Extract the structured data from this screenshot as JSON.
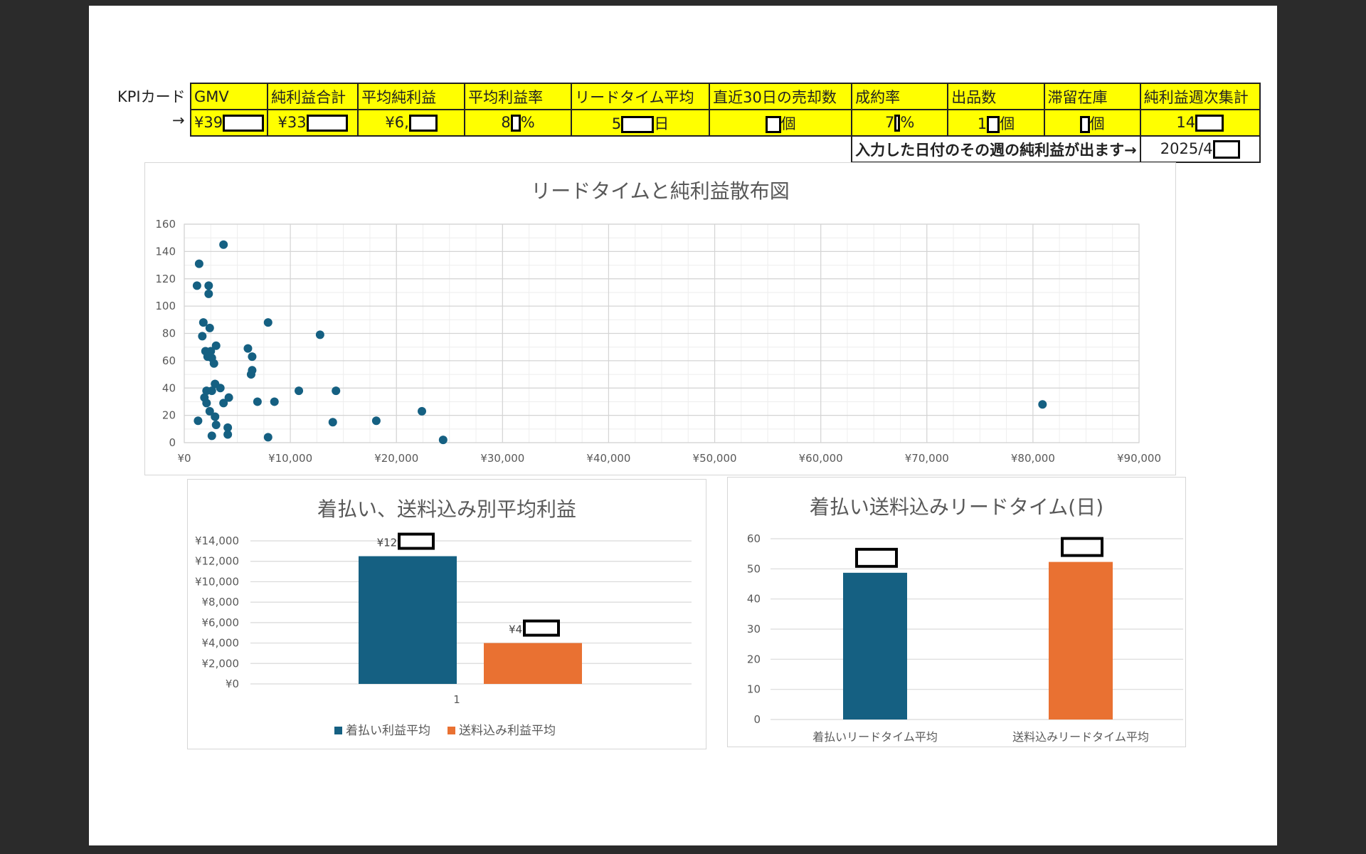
{
  "kpi": {
    "card_label": "KPIカード",
    "arrow": "→",
    "headers": [
      "GMV",
      "純利益合計",
      "平均純利益",
      "平均利益率",
      "リードタイム平均",
      "直近30日の売却数",
      "成約率",
      "出品数",
      "滞留在庫",
      "純利益週次集計"
    ],
    "values": [
      {
        "pre": "¥39",
        "post": "",
        "rw": 58
      },
      {
        "pre": "¥33",
        "post": "",
        "rw": 58
      },
      {
        "pre": "¥6,",
        "post": "",
        "rw": 40
      },
      {
        "pre": "8",
        "post": "%",
        "rw": 14
      },
      {
        "pre": "5",
        "post": "日",
        "rw": 46
      },
      {
        "pre": "",
        "post": "個",
        "rw": 22
      },
      {
        "pre": "7",
        "post": "%",
        "rw": 8
      },
      {
        "pre": "1",
        "post": "個",
        "rw": 18
      },
      {
        "pre": "",
        "post": "個",
        "rw": 14
      },
      {
        "pre": "14",
        "post": "",
        "rw": 40
      }
    ],
    "weekly_text": "入力した日付のその週の純利益が出ます→",
    "weekly_date": "2025/4"
  },
  "chart_data": [
    {
      "type": "scatter",
      "title": "リードタイムと純利益散布図",
      "xlim": [
        0,
        90000
      ],
      "ylim": [
        0,
        160
      ],
      "x_ticks": [
        "¥0",
        "¥10,000",
        "¥20,000",
        "¥30,000",
        "¥40,000",
        "¥50,000",
        "¥60,000",
        "¥70,000",
        "¥80,000",
        "¥90,000"
      ],
      "y_ticks": [
        "0",
        "20",
        "40",
        "60",
        "80",
        "100",
        "120",
        "140",
        "160"
      ],
      "grid": true,
      "points": [
        [
          3700,
          145
        ],
        [
          1400,
          131
        ],
        [
          1200,
          115
        ],
        [
          2300,
          115
        ],
        [
          2300,
          109
        ],
        [
          1800,
          88
        ],
        [
          2400,
          84
        ],
        [
          1700,
          78
        ],
        [
          3000,
          71
        ],
        [
          2000,
          67
        ],
        [
          2500,
          67
        ],
        [
          2200,
          63
        ],
        [
          2600,
          62
        ],
        [
          2800,
          58
        ],
        [
          1900,
          33
        ],
        [
          2900,
          43
        ],
        [
          3400,
          40
        ],
        [
          2100,
          38
        ],
        [
          2600,
          38
        ],
        [
          4200,
          33
        ],
        [
          3700,
          29
        ],
        [
          2100,
          29
        ],
        [
          2400,
          23
        ],
        [
          2900,
          19
        ],
        [
          1300,
          16
        ],
        [
          3000,
          13
        ],
        [
          4100,
          11
        ],
        [
          4100,
          6
        ],
        [
          2600,
          5
        ],
        [
          7900,
          88
        ],
        [
          12800,
          79
        ],
        [
          6000,
          69
        ],
        [
          6400,
          63
        ],
        [
          6400,
          53
        ],
        [
          6300,
          50
        ],
        [
          6900,
          30
        ],
        [
          8500,
          30
        ],
        [
          10800,
          38
        ],
        [
          14300,
          38
        ],
        [
          14000,
          15
        ],
        [
          18100,
          16
        ],
        [
          22400,
          23
        ],
        [
          24400,
          2
        ],
        [
          7900,
          4
        ],
        [
          80900,
          28
        ]
      ]
    },
    {
      "type": "bar",
      "title": "着払い、送料込み別平均利益",
      "categories": [
        "1"
      ],
      "ylim": [
        0,
        14000
      ],
      "y_ticks": [
        "¥0",
        "¥2,000",
        "¥4,000",
        "¥6,000",
        "¥8,000",
        "¥10,000",
        "¥12,000",
        "¥14,000"
      ],
      "series": [
        {
          "name": "着払い利益平均",
          "values": [
            12500
          ],
          "label": "¥12,",
          "color": "#156082"
        },
        {
          "name": "送料込み利益平均",
          "values": [
            4000
          ],
          "label": "¥4,",
          "color": "#e97132"
        }
      ]
    },
    {
      "type": "bar",
      "title": "着払い送料込みリードタイム(日)",
      "categories": [
        "着払いリードタイム平均",
        "送料込みリードタイム平均"
      ],
      "ylim": [
        0,
        60
      ],
      "y_ticks": [
        "0",
        "10",
        "20",
        "30",
        "40",
        "50",
        "60"
      ],
      "series": [
        {
          "values": [
            48.7,
            52.3
          ],
          "colors": [
            "#156082",
            "#e97132"
          ]
        }
      ]
    }
  ]
}
